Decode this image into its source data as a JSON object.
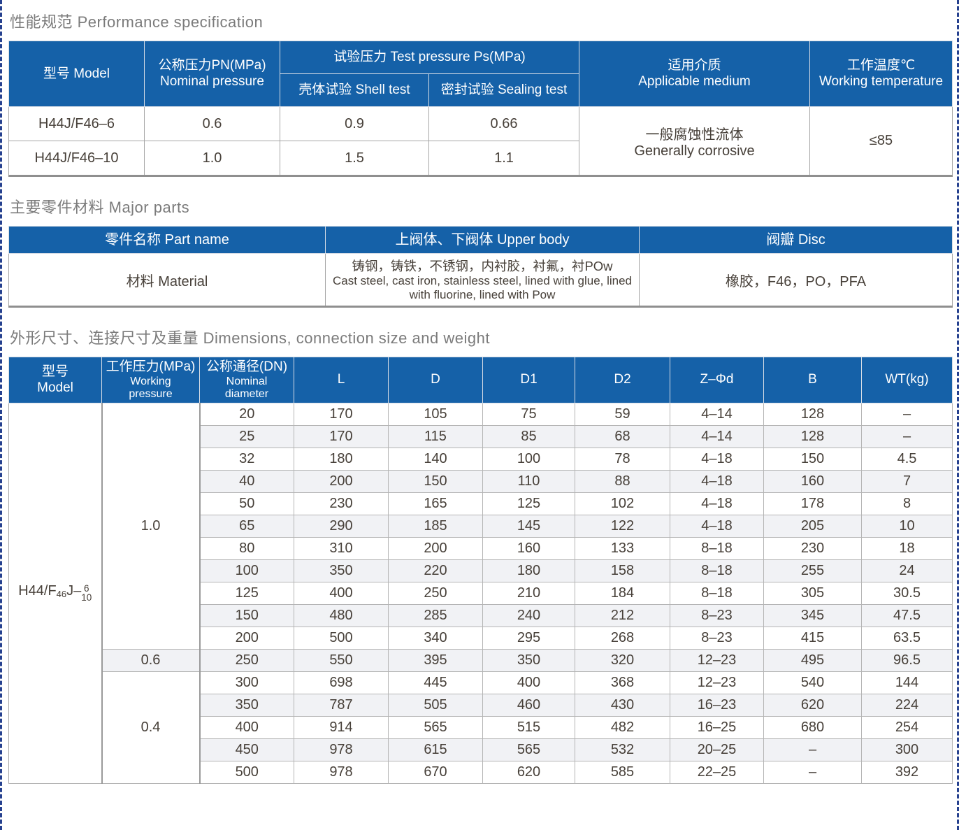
{
  "page": {
    "accent_blue": "#1561a8",
    "dash_border_color": "#26418f",
    "stripe_color": "#f1f2f5"
  },
  "performance": {
    "title": "性能规范 Performance specification",
    "headers": {
      "model": "型号 Model",
      "nominal_pressure_zh": "公称压力PN(MPa)",
      "nominal_pressure_en": "Nominal pressure",
      "test_pressure_group": "试验压力 Test pressure Ps(MPa)",
      "shell_test": "壳体试验 Shell test",
      "sealing_test": "密封试验 Sealing test",
      "medium_zh": "适用介质",
      "medium_en": "Applicable medium",
      "temperature_zh": "工作温度℃",
      "temperature_en": "Working temperature"
    },
    "rows": [
      {
        "model": "H44J/F46–6",
        "nominal": "0.6",
        "shell": "0.9",
        "sealing": "0.66"
      },
      {
        "model": "H44J/F46–10",
        "nominal": "1.0",
        "shell": "1.5",
        "sealing": "1.1"
      }
    ],
    "medium_value_zh": "一般腐蚀性流体",
    "medium_value_en": "Generally corrosive",
    "temperature_value": "≤85"
  },
  "materials": {
    "title": "主要零件材料 Major parts",
    "headers": {
      "part_name": "零件名称 Part name",
      "upper_body": "上阀体、下阀体 Upper body",
      "disc": "阀瓣 Disc"
    },
    "row": {
      "part_name": "材料 Material",
      "upper_body_zh": "铸钢，铸铁，不锈钢，内衬胶，衬氟，衬POw",
      "upper_body_en": "Cast steel, cast iron, stainless steel, lined with glue, lined with fluorine, lined with Pow",
      "disc": "橡胶，F46，PO，PFA"
    }
  },
  "dimensions": {
    "title": "外形尺寸、连接尺寸及重量 Dimensions, connection size and weight",
    "headers": {
      "model_zh": "型号",
      "model_en": "Model",
      "pressure_zh": "工作压力(MPa)",
      "pressure_en1": "Working",
      "pressure_en2": "pressure",
      "dn_zh": "公称通径(DN)",
      "dn_en1": "Nominal",
      "dn_en2": "diameter",
      "L": "L",
      "D": "D",
      "D1": "D1",
      "D2": "D2",
      "zfd": "Z–Φd",
      "B": "B",
      "WT": "WT(kg)"
    },
    "model": {
      "prefix": "H44/F",
      "sub": "46",
      "mid": "J–",
      "frac_top": "6",
      "frac_bottom": "10"
    },
    "pressure_groups": [
      {
        "value": "1.0",
        "span": 11
      },
      {
        "value": "0.6",
        "span": 1
      },
      {
        "value": "0.4",
        "span": 5
      }
    ],
    "rows": [
      [
        "20",
        "170",
        "105",
        "75",
        "59",
        "4–14",
        "128",
        "–"
      ],
      [
        "25",
        "170",
        "115",
        "85",
        "68",
        "4–14",
        "128",
        "–"
      ],
      [
        "32",
        "180",
        "140",
        "100",
        "78",
        "4–18",
        "150",
        "4.5"
      ],
      [
        "40",
        "200",
        "150",
        "110",
        "88",
        "4–18",
        "160",
        "7"
      ],
      [
        "50",
        "230",
        "165",
        "125",
        "102",
        "4–18",
        "178",
        "8"
      ],
      [
        "65",
        "290",
        "185",
        "145",
        "122",
        "4–18",
        "205",
        "10"
      ],
      [
        "80",
        "310",
        "200",
        "160",
        "133",
        "8–18",
        "230",
        "18"
      ],
      [
        "100",
        "350",
        "220",
        "180",
        "158",
        "8–18",
        "255",
        "24"
      ],
      [
        "125",
        "400",
        "250",
        "210",
        "184",
        "8–18",
        "305",
        "30.5"
      ],
      [
        "150",
        "480",
        "285",
        "240",
        "212",
        "8–23",
        "345",
        "47.5"
      ],
      [
        "200",
        "500",
        "340",
        "295",
        "268",
        "8–23",
        "415",
        "63.5"
      ],
      [
        "250",
        "550",
        "395",
        "350",
        "320",
        "12–23",
        "495",
        "96.5"
      ],
      [
        "300",
        "698",
        "445",
        "400",
        "368",
        "12–23",
        "540",
        "144"
      ],
      [
        "350",
        "787",
        "505",
        "460",
        "430",
        "16–23",
        "620",
        "224"
      ],
      [
        "400",
        "914",
        "565",
        "515",
        "482",
        "16–25",
        "680",
        "254"
      ],
      [
        "450",
        "978",
        "615",
        "565",
        "532",
        "20–25",
        "–",
        "300"
      ],
      [
        "500",
        "978",
        "670",
        "620",
        "585",
        "22–25",
        "–",
        "392"
      ]
    ]
  }
}
